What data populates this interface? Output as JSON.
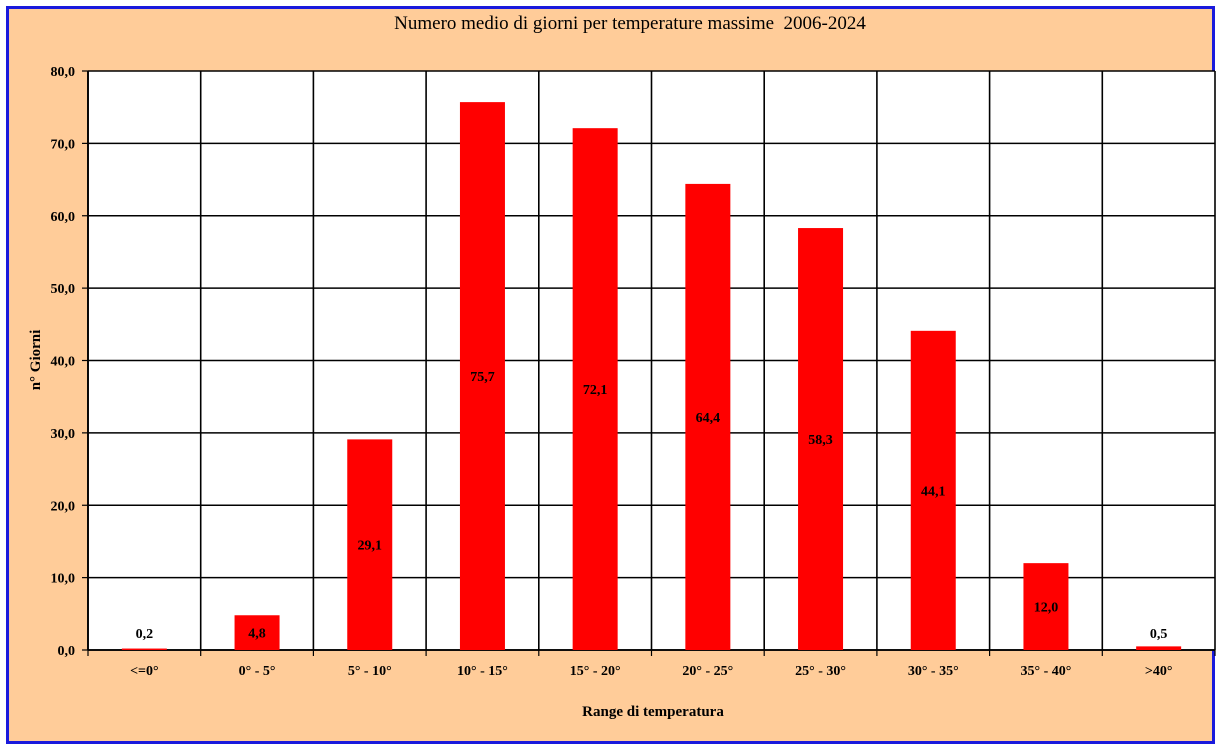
{
  "chart_data": {
    "type": "bar",
    "title": "Numero medio di giorni per temperature massime  2006-2024",
    "xlabel": "Range di temperatura",
    "ylabel": "n° Giorni",
    "categories": [
      "<=0°",
      "0° - 5°",
      "5° - 10°",
      "10° - 15°",
      "15° - 20°",
      "20° - 25°",
      "25° - 30°",
      "30° - 35°",
      "35° - 40°",
      ">40°"
    ],
    "values": [
      0.2,
      4.8,
      29.1,
      75.7,
      72.1,
      64.4,
      58.3,
      44.1,
      12.0,
      0.5
    ],
    "value_labels": [
      "0,2",
      "4,8",
      "29,1",
      "75,7",
      "72,1",
      "64,4",
      "58,3",
      "44,1",
      "12,0",
      "0,5"
    ],
    "ylim": [
      0,
      80
    ],
    "yticks": [
      0,
      10,
      20,
      30,
      40,
      50,
      60,
      70,
      80
    ],
    "ytick_labels": [
      "0,0",
      "10,0",
      "20,0",
      "30,0",
      "40,0",
      "50,0",
      "60,0",
      "70,0",
      "80,0"
    ],
    "grid": true,
    "legend": "none",
    "colors": {
      "bar": "#ff0000",
      "frame_background": "#ffcc99",
      "frame_border": "#1a1adc",
      "plot_background": "#ffffff",
      "grid": "#000000",
      "text": "#000000"
    }
  }
}
